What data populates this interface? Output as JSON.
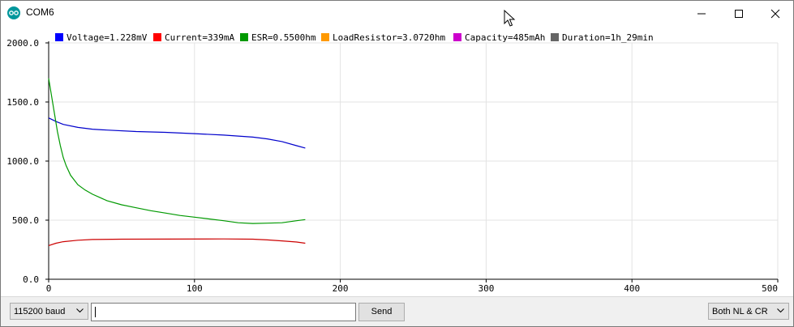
{
  "window": {
    "title": "COM6"
  },
  "legend": [
    {
      "label": "Voltage=1.228mV",
      "color": "#0000ff"
    },
    {
      "label": "Current=339mA",
      "color": "#ff0000"
    },
    {
      "label": "ESR=0.5500hm",
      "color": "#009900"
    },
    {
      "label": "LoadResistor=3.0720hm",
      "color": "#ff9900"
    },
    {
      "label": "Capacity=485mAh",
      "color": "#cc00cc"
    },
    {
      "label": "Duration=1h_29min",
      "color": "#666666"
    }
  ],
  "chart_data": {
    "type": "line",
    "xlim": [
      0,
      500
    ],
    "ylim": [
      0,
      2000
    ],
    "x_ticks": [
      "0",
      "100",
      "200",
      "300",
      "400",
      "500"
    ],
    "y_ticks": [
      "0.0",
      "500.0",
      "1000.0",
      "1500.0",
      "2000.0"
    ],
    "grid": true,
    "legend_position": "top",
    "series": [
      {
        "name": "Voltage=1.228mV",
        "color": "#0000cc",
        "points": [
          [
            0,
            1365
          ],
          [
            5,
            1335
          ],
          [
            10,
            1310
          ],
          [
            20,
            1285
          ],
          [
            30,
            1270
          ],
          [
            40,
            1262
          ],
          [
            60,
            1250
          ],
          [
            80,
            1243
          ],
          [
            100,
            1232
          ],
          [
            120,
            1220
          ],
          [
            140,
            1203
          ],
          [
            150,
            1188
          ],
          [
            160,
            1165
          ],
          [
            170,
            1130
          ],
          [
            176,
            1110
          ]
        ]
      },
      {
        "name": "Current=339mA",
        "color": "#cc0000",
        "points": [
          [
            0,
            285
          ],
          [
            5,
            305
          ],
          [
            10,
            318
          ],
          [
            20,
            330
          ],
          [
            30,
            336
          ],
          [
            50,
            339
          ],
          [
            80,
            340
          ],
          [
            120,
            341
          ],
          [
            140,
            339
          ],
          [
            150,
            333
          ],
          [
            160,
            325
          ],
          [
            170,
            315
          ],
          [
            176,
            305
          ]
        ]
      },
      {
        "name": "ESR=0.5500hm",
        "color": "#009900",
        "points": [
          [
            0,
            1700
          ],
          [
            2,
            1550
          ],
          [
            4,
            1400
          ],
          [
            6,
            1250
          ],
          [
            8,
            1130
          ],
          [
            10,
            1030
          ],
          [
            12,
            960
          ],
          [
            15,
            880
          ],
          [
            20,
            800
          ],
          [
            25,
            755
          ],
          [
            30,
            720
          ],
          [
            40,
            665
          ],
          [
            50,
            630
          ],
          [
            60,
            605
          ],
          [
            70,
            580
          ],
          [
            80,
            560
          ],
          [
            90,
            540
          ],
          [
            100,
            525
          ],
          [
            110,
            510
          ],
          [
            120,
            495
          ],
          [
            130,
            478
          ],
          [
            140,
            472
          ],
          [
            150,
            475
          ],
          [
            160,
            478
          ],
          [
            170,
            495
          ],
          [
            176,
            505
          ]
        ]
      }
    ]
  },
  "bottom": {
    "baud": "115200 baud",
    "send_label": "Send",
    "line_ending": "Both NL & CR"
  }
}
